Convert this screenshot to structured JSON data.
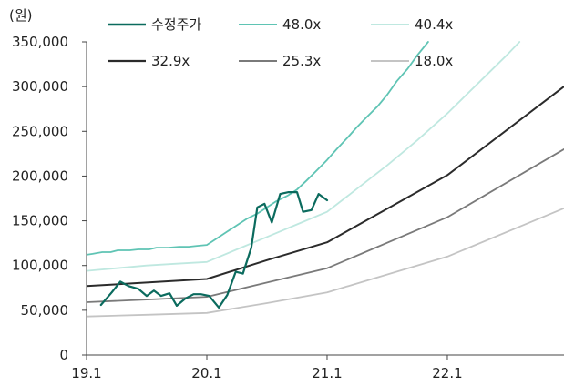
{
  "chart_data": {
    "type": "line",
    "unit_label": "(원)",
    "y_ticks": [
      "350,000",
      "300,000",
      "250,000",
      "200,000",
      "150,000",
      "100,000",
      "50,000",
      "0"
    ],
    "y_tick_values": [
      350000,
      300000,
      250000,
      200000,
      150000,
      100000,
      50000,
      0
    ],
    "x_ticks": [
      "19.1",
      "20.1",
      "21.1",
      "22.1"
    ],
    "x_tick_values": [
      2019.0,
      2020.0,
      2021.0,
      2022.0
    ],
    "xlim": [
      2019.0,
      2022.97
    ],
    "ylim": [
      0,
      350000
    ],
    "grid": false,
    "legend_position": "top",
    "series": [
      {
        "name": "수정주가",
        "color": "#0b6b5e",
        "width": 2.2,
        "points": [
          [
            2019.12,
            56000
          ],
          [
            2019.21,
            70000
          ],
          [
            2019.28,
            82000
          ],
          [
            2019.35,
            77000
          ],
          [
            2019.43,
            74000
          ],
          [
            2019.5,
            66000
          ],
          [
            2019.56,
            72000
          ],
          [
            2019.62,
            66000
          ],
          [
            2019.69,
            69000
          ],
          [
            2019.75,
            55000
          ],
          [
            2019.82,
            63000
          ],
          [
            2019.89,
            68000
          ],
          [
            2019.95,
            68000
          ],
          [
            2020.02,
            66000
          ],
          [
            2020.1,
            53000
          ],
          [
            2020.17,
            67000
          ],
          [
            2020.24,
            93000
          ],
          [
            2020.3,
            91000
          ],
          [
            2020.37,
            120000
          ],
          [
            2020.42,
            165000
          ],
          [
            2020.48,
            169000
          ],
          [
            2020.54,
            148000
          ],
          [
            2020.61,
            180000
          ],
          [
            2020.68,
            182000
          ],
          [
            2020.75,
            182000
          ],
          [
            2020.8,
            160000
          ],
          [
            2020.87,
            162000
          ],
          [
            2020.93,
            180000
          ],
          [
            2021.0,
            173000
          ]
        ]
      },
      {
        "name": "48.0x",
        "color": "#5fc4b4",
        "width": 1.8,
        "points": [
          [
            2019.0,
            112000
          ],
          [
            2019.05,
            113000
          ],
          [
            2019.13,
            115000
          ],
          [
            2019.2,
            115000
          ],
          [
            2019.26,
            117000
          ],
          [
            2019.36,
            117000
          ],
          [
            2019.43,
            118000
          ],
          [
            2019.52,
            118000
          ],
          [
            2019.58,
            120000
          ],
          [
            2019.68,
            120000
          ],
          [
            2019.77,
            121000
          ],
          [
            2019.85,
            121000
          ],
          [
            2019.92,
            122000
          ],
          [
            2020.0,
            123000
          ],
          [
            2020.08,
            130000
          ],
          [
            2020.17,
            138000
          ],
          [
            2020.25,
            145000
          ],
          [
            2020.33,
            152000
          ],
          [
            2020.42,
            158000
          ],
          [
            2020.5,
            165000
          ],
          [
            2020.58,
            172000
          ],
          [
            2020.67,
            178000
          ],
          [
            2020.75,
            185000
          ],
          [
            2020.83,
            195000
          ],
          [
            2020.92,
            207000
          ],
          [
            2021.0,
            218000
          ],
          [
            2021.08,
            230000
          ],
          [
            2021.17,
            243000
          ],
          [
            2021.25,
            255000
          ],
          [
            2021.33,
            266000
          ],
          [
            2021.42,
            278000
          ],
          [
            2021.5,
            291000
          ],
          [
            2021.58,
            306000
          ],
          [
            2021.67,
            320000
          ],
          [
            2021.75,
            335000
          ],
          [
            2021.84,
            350000
          ]
        ]
      },
      {
        "name": "40.4x",
        "color": "#bfe8e0",
        "width": 1.8,
        "points": [
          [
            2019.0,
            94000
          ],
          [
            2019.25,
            97000
          ],
          [
            2019.5,
            100000
          ],
          [
            2019.75,
            102000
          ],
          [
            2020.0,
            104000
          ],
          [
            2020.25,
            118000
          ],
          [
            2020.5,
            132000
          ],
          [
            2020.75,
            146000
          ],
          [
            2021.0,
            160000
          ],
          [
            2021.25,
            186000
          ],
          [
            2021.5,
            212000
          ],
          [
            2021.75,
            240000
          ],
          [
            2022.0,
            270000
          ],
          [
            2022.25,
            303000
          ],
          [
            2022.5,
            336000
          ],
          [
            2022.6,
            350000
          ]
        ]
      },
      {
        "name": "32.9x",
        "color": "#2b2b2b",
        "width": 2.0,
        "points": [
          [
            2019.0,
            77000
          ],
          [
            2019.5,
            81000
          ],
          [
            2020.0,
            85000
          ],
          [
            2020.5,
            106000
          ],
          [
            2021.0,
            126000
          ],
          [
            2022.0,
            201000
          ],
          [
            2022.97,
            300000
          ]
        ]
      },
      {
        "name": "25.3x",
        "color": "#7a7a7a",
        "width": 1.8,
        "points": [
          [
            2019.0,
            59000
          ],
          [
            2019.5,
            62000
          ],
          [
            2020.0,
            65000
          ],
          [
            2020.5,
            81000
          ],
          [
            2021.0,
            97000
          ],
          [
            2022.0,
            154000
          ],
          [
            2022.97,
            230000
          ]
        ]
      },
      {
        "name": "18.0x",
        "color": "#c4c4c4",
        "width": 1.8,
        "points": [
          [
            2019.0,
            43000
          ],
          [
            2019.5,
            45000
          ],
          [
            2020.0,
            47000
          ],
          [
            2020.5,
            58000
          ],
          [
            2021.0,
            70000
          ],
          [
            2022.0,
            110000
          ],
          [
            2022.97,
            164000
          ]
        ]
      }
    ]
  }
}
